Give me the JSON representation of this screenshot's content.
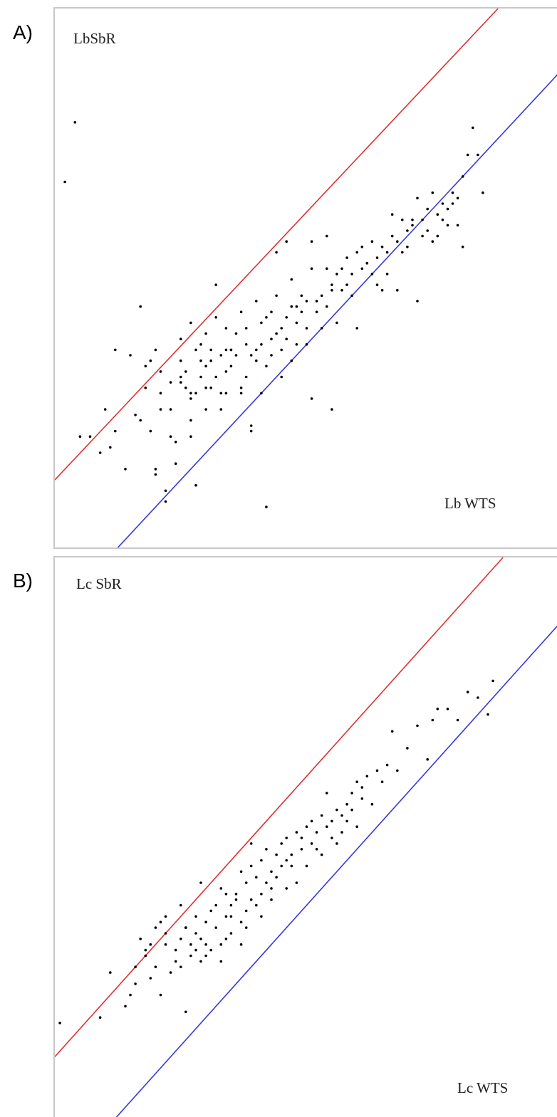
{
  "panels": [
    {
      "letter": "A)",
      "ylabel": "LbSbR",
      "xlabel": "Lb WTS"
    },
    {
      "letter": "B)",
      "ylabel": "Lc SbR",
      "xlabel": "Lc WTS"
    }
  ],
  "colors": {
    "upper_line": "#e03030",
    "lower_line": "#3838e0",
    "points": "#000000",
    "frame": "#c8c8c8"
  },
  "chart_data": [
    {
      "type": "scatter",
      "title": "",
      "xlabel": "Lb WTS",
      "ylabel": "LbSbR",
      "xlim": [
        0,
        100
      ],
      "ylim": [
        0,
        100
      ],
      "grid": false,
      "reference_lines": [
        {
          "name": "",
          "color": "#e03030",
          "points": [
            [
              0,
              13
            ],
            [
              88,
              100
            ]
          ]
        },
        {
          "name": "",
          "color": "#3838e0",
          "points": [
            [
              12,
              0
            ],
            [
              100,
              88
            ]
          ]
        }
      ],
      "points": [
        [
          2,
          68
        ],
        [
          4,
          79
        ],
        [
          5,
          21
        ],
        [
          7,
          21
        ],
        [
          9,
          18
        ],
        [
          10,
          26
        ],
        [
          11,
          19
        ],
        [
          12,
          22
        ],
        [
          12,
          37
        ],
        [
          14,
          15
        ],
        [
          15,
          36
        ],
        [
          16,
          25
        ],
        [
          17,
          45
        ],
        [
          17,
          24
        ],
        [
          18,
          34
        ],
        [
          18,
          30
        ],
        [
          19,
          35
        ],
        [
          19,
          22
        ],
        [
          20,
          37
        ],
        [
          20,
          14
        ],
        [
          20,
          15
        ],
        [
          21,
          29
        ],
        [
          21,
          26
        ],
        [
          21,
          33
        ],
        [
          22,
          9
        ],
        [
          22,
          11
        ],
        [
          23,
          21
        ],
        [
          23,
          26
        ],
        [
          23,
          31
        ],
        [
          24,
          16
        ],
        [
          24,
          20
        ],
        [
          25,
          39
        ],
        [
          25,
          31
        ],
        [
          25,
          32
        ],
        [
          25,
          35
        ],
        [
          26,
          30
        ],
        [
          26,
          33
        ],
        [
          27,
          42
        ],
        [
          27,
          28
        ],
        [
          27,
          21
        ],
        [
          27,
          24
        ],
        [
          27,
          29
        ],
        [
          28,
          12
        ],
        [
          28,
          37
        ],
        [
          28,
          29
        ],
        [
          29,
          32
        ],
        [
          29,
          38
        ],
        [
          29,
          35
        ],
        [
          30,
          40
        ],
        [
          30,
          26
        ],
        [
          30,
          34
        ],
        [
          30,
          30
        ],
        [
          31,
          37
        ],
        [
          31,
          35
        ],
        [
          31,
          30
        ],
        [
          32,
          49
        ],
        [
          32,
          32
        ],
        [
          32,
          43
        ],
        [
          33,
          36
        ],
        [
          33,
          29
        ],
        [
          33,
          26
        ],
        [
          34,
          41
        ],
        [
          34,
          33
        ],
        [
          34,
          37
        ],
        [
          34,
          29
        ],
        [
          35,
          37
        ],
        [
          35,
          37
        ],
        [
          35,
          34
        ],
        [
          36,
          40
        ],
        [
          36,
          36
        ],
        [
          37,
          30
        ],
        [
          37,
          44
        ],
        [
          37,
          29
        ],
        [
          38,
          32
        ],
        [
          38,
          41
        ],
        [
          38,
          38
        ],
        [
          39,
          36
        ],
        [
          39,
          22
        ],
        [
          39,
          23
        ],
        [
          40,
          35
        ],
        [
          40,
          46
        ],
        [
          40,
          37
        ],
        [
          41,
          29
        ],
        [
          41,
          42
        ],
        [
          41,
          38
        ],
        [
          42,
          43
        ],
        [
          42,
          8
        ],
        [
          42,
          34
        ],
        [
          43,
          39
        ],
        [
          43,
          44
        ],
        [
          43,
          36
        ],
        [
          44,
          47
        ],
        [
          44,
          40
        ],
        [
          44,
          55
        ],
        [
          45,
          41
        ],
        [
          45,
          32
        ],
        [
          45,
          37
        ],
        [
          46,
          39
        ],
        [
          46,
          43
        ],
        [
          46,
          57
        ],
        [
          47,
          45
        ],
        [
          47,
          50
        ],
        [
          47,
          35
        ],
        [
          48,
          42
        ],
        [
          48,
          38
        ],
        [
          48,
          45
        ],
        [
          49,
          44
        ],
        [
          49,
          47
        ],
        [
          50,
          41
        ],
        [
          50,
          38
        ],
        [
          50,
          46
        ],
        [
          51,
          57
        ],
        [
          51,
          28
        ],
        [
          51,
          52
        ],
        [
          52,
          44
        ],
        [
          52,
          46
        ],
        [
          53,
          47
        ],
        [
          53,
          41
        ],
        [
          54,
          45
        ],
        [
          54,
          58
        ],
        [
          54,
          52
        ],
        [
          55,
          49
        ],
        [
          55,
          48
        ],
        [
          55,
          26
        ],
        [
          56,
          51
        ],
        [
          56,
          42
        ],
        [
          57,
          48
        ],
        [
          57,
          52
        ],
        [
          58,
          49
        ],
        [
          58,
          54
        ],
        [
          59,
          47
        ],
        [
          59,
          51
        ],
        [
          60,
          41
        ],
        [
          60,
          55
        ],
        [
          61,
          52
        ],
        [
          61,
          56
        ],
        [
          62,
          53
        ],
        [
          62,
          53
        ],
        [
          63,
          57
        ],
        [
          63,
          51
        ],
        [
          64,
          49
        ],
        [
          64,
          54
        ],
        [
          65,
          48
        ],
        [
          65,
          56
        ],
        [
          66,
          51
        ],
        [
          66,
          55
        ],
        [
          67,
          62
        ],
        [
          67,
          58
        ],
        [
          68,
          57
        ],
        [
          68,
          48
        ],
        [
          69,
          55
        ],
        [
          69,
          61
        ],
        [
          70,
          59
        ],
        [
          70,
          56
        ],
        [
          71,
          61
        ],
        [
          71,
          60
        ],
        [
          72,
          46
        ],
        [
          72,
          65
        ],
        [
          73,
          61
        ],
        [
          73,
          58
        ],
        [
          74,
          63
        ],
        [
          74,
          59
        ],
        [
          75,
          57
        ],
        [
          75,
          66
        ],
        [
          76,
          62
        ],
        [
          76,
          58
        ],
        [
          77,
          64
        ],
        [
          77,
          61
        ],
        [
          78,
          63
        ],
        [
          78,
          60
        ],
        [
          79,
          66
        ],
        [
          79,
          64
        ],
        [
          80,
          65
        ],
        [
          80,
          60
        ],
        [
          81,
          56
        ],
        [
          81,
          69
        ],
        [
          82,
          73
        ],
        [
          83,
          78
        ],
        [
          84,
          73
        ],
        [
          85,
          66
        ]
      ]
    },
    {
      "type": "scatter",
      "title": "",
      "xlabel": "Lc WTS",
      "ylabel": "Lc SbR",
      "xlim": [
        0,
        100
      ],
      "ylim": [
        0,
        100
      ],
      "grid": false,
      "reference_lines": [
        {
          "name": "",
          "color": "#e03030",
          "points": [
            [
              0,
              11
            ],
            [
              89,
              100
            ]
          ]
        },
        {
          "name": "",
          "color": "#3838e0",
          "points": [
            [
              12,
              0
            ],
            [
              100,
              88
            ]
          ]
        }
      ],
      "points": [
        [
          1,
          17
        ],
        [
          9,
          18
        ],
        [
          11,
          26
        ],
        [
          14,
          20
        ],
        [
          15,
          22
        ],
        [
          16,
          27
        ],
        [
          16,
          24
        ],
        [
          17,
          32
        ],
        [
          18,
          30
        ],
        [
          18,
          29
        ],
        [
          19,
          25
        ],
        [
          19,
          31
        ],
        [
          20,
          34
        ],
        [
          20,
          27
        ],
        [
          21,
          22
        ],
        [
          21,
          35
        ],
        [
          22,
          33
        ],
        [
          22,
          36
        ],
        [
          22,
          31
        ],
        [
          23,
          26
        ],
        [
          24,
          30
        ],
        [
          24,
          28
        ],
        [
          25,
          27
        ],
        [
          25,
          38
        ],
        [
          25,
          32
        ],
        [
          26,
          34
        ],
        [
          26,
          19
        ],
        [
          26,
          34
        ],
        [
          27,
          29
        ],
        [
          27,
          31
        ],
        [
          28,
          30
        ],
        [
          28,
          36
        ],
        [
          28,
          33
        ],
        [
          29,
          28
        ],
        [
          29,
          42
        ],
        [
          29,
          32
        ],
        [
          30,
          31
        ],
        [
          30,
          35
        ],
        [
          30,
          29
        ],
        [
          31,
          37
        ],
        [
          31,
          30
        ],
        [
          32,
          34
        ],
        [
          32,
          38
        ],
        [
          33,
          31
        ],
        [
          33,
          41
        ],
        [
          33,
          28
        ],
        [
          34,
          36
        ],
        [
          34,
          40
        ],
        [
          34,
          32
        ],
        [
          35,
          38
        ],
        [
          35,
          36
        ],
        [
          35,
          33
        ],
        [
          36,
          40
        ],
        [
          36,
          39
        ],
        [
          37,
          35
        ],
        [
          37,
          44
        ],
        [
          37,
          31
        ],
        [
          38,
          37
        ],
        [
          38,
          42
        ],
        [
          38,
          34
        ],
        [
          39,
          39
        ],
        [
          39,
          49
        ],
        [
          39,
          45
        ],
        [
          40,
          43
        ],
        [
          40,
          38
        ],
        [
          41,
          40
        ],
        [
          41,
          46
        ],
        [
          41,
          36
        ],
        [
          42,
          48
        ],
        [
          42,
          42
        ],
        [
          43,
          41
        ],
        [
          43,
          44
        ],
        [
          43,
          39
        ],
        [
          44,
          47
        ],
        [
          44,
          43
        ],
        [
          45,
          45
        ],
        [
          45,
          49
        ],
        [
          46,
          41
        ],
        [
          46,
          46
        ],
        [
          46,
          50
        ],
        [
          47,
          47
        ],
        [
          47,
          45
        ],
        [
          48,
          42
        ],
        [
          48,
          51
        ],
        [
          49,
          48
        ],
        [
          49,
          50
        ],
        [
          50,
          52
        ],
        [
          50,
          45
        ],
        [
          51,
          49
        ],
        [
          51,
          53
        ],
        [
          52,
          51
        ],
        [
          52,
          48
        ],
        [
          53,
          47
        ],
        [
          53,
          54
        ],
        [
          54,
          52
        ],
        [
          54,
          58
        ],
        [
          55,
          50
        ],
        [
          55,
          53
        ],
        [
          56,
          55
        ],
        [
          56,
          49
        ],
        [
          57,
          54
        ],
        [
          57,
          51
        ],
        [
          58,
          56
        ],
        [
          58,
          53
        ],
        [
          59,
          58
        ],
        [
          59,
          55
        ],
        [
          60,
          60
        ],
        [
          60,
          52
        ],
        [
          61,
          57
        ],
        [
          61,
          59
        ],
        [
          62,
          61
        ],
        [
          63,
          56
        ],
        [
          64,
          62
        ],
        [
          65,
          60
        ],
        [
          66,
          63
        ],
        [
          67,
          69
        ],
        [
          68,
          62
        ],
        [
          70,
          66
        ],
        [
          72,
          70
        ],
        [
          74,
          64
        ],
        [
          75,
          71
        ],
        [
          76,
          73
        ],
        [
          78,
          73
        ],
        [
          80,
          71
        ],
        [
          82,
          76
        ],
        [
          84,
          75
        ],
        [
          86,
          72
        ],
        [
          87,
          78
        ]
      ]
    }
  ]
}
